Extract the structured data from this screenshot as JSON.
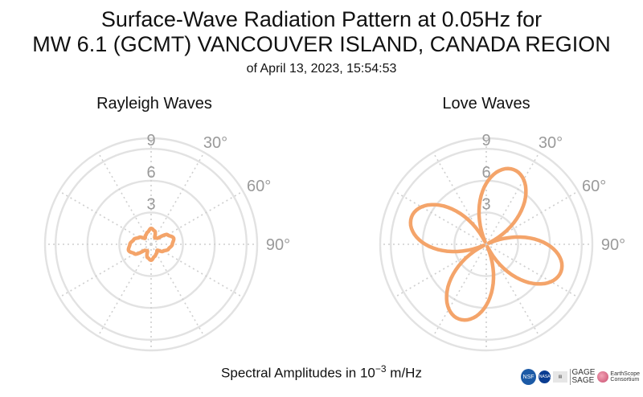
{
  "header": {
    "title_line1": "Surface-Wave Radiation Pattern at 0.05Hz for",
    "title_line2": "MW 6.1 (GCMT) VANCOUVER ISLAND, CANADA REGION",
    "subtitle": "of April 13, 2023, 15:54:53"
  },
  "footer": {
    "amp_label_prefix": "Spectral Amplitudes in 10",
    "amp_label_exp": "−3",
    "amp_label_unit": " m/Hz"
  },
  "logos": {
    "nsf": "NSF",
    "nasa": "NASA",
    "gage": "GAGE",
    "sage": "SAGE",
    "earthscope": "EarthScope",
    "earthscope_sub": "Consortium"
  },
  "colors": {
    "curve": "#f4a46a",
    "grid": "#e2e2e2",
    "label": "#9a9a9a"
  },
  "chart_data": [
    {
      "type": "polar-line",
      "title": "Rayleigh Waves",
      "r_ticks": [
        "3",
        "6",
        "9"
      ],
      "r_max": 10,
      "angle_ticks": [
        "30°",
        "60°",
        "90°"
      ],
      "angle_tick_values": [
        30,
        60,
        90
      ],
      "theta_deg": [
        0,
        15,
        30,
        45,
        60,
        75,
        90,
        105,
        120,
        135,
        150,
        165,
        180,
        195,
        210,
        225,
        240,
        255,
        270,
        285,
        300,
        315,
        330,
        345
      ],
      "r": [
        1.5,
        1.3,
        0.7,
        0.8,
        1.8,
        2.2,
        2.0,
        1.7,
        1.3,
        0.8,
        1.0,
        1.2,
        1.5,
        1.3,
        0.7,
        0.8,
        1.8,
        2.2,
        2.0,
        1.7,
        1.3,
        0.8,
        1.0,
        1.2
      ]
    },
    {
      "type": "polar-line",
      "title": "Love Waves",
      "r_ticks": [
        "3",
        "6",
        "9"
      ],
      "r_max": 10,
      "angle_ticks": [
        "30°",
        "60°",
        "90°"
      ],
      "angle_tick_values": [
        30,
        60,
        90
      ],
      "lobe_max": 7.5,
      "lobe_center_deg": 20,
      "lobes": 4
    }
  ]
}
